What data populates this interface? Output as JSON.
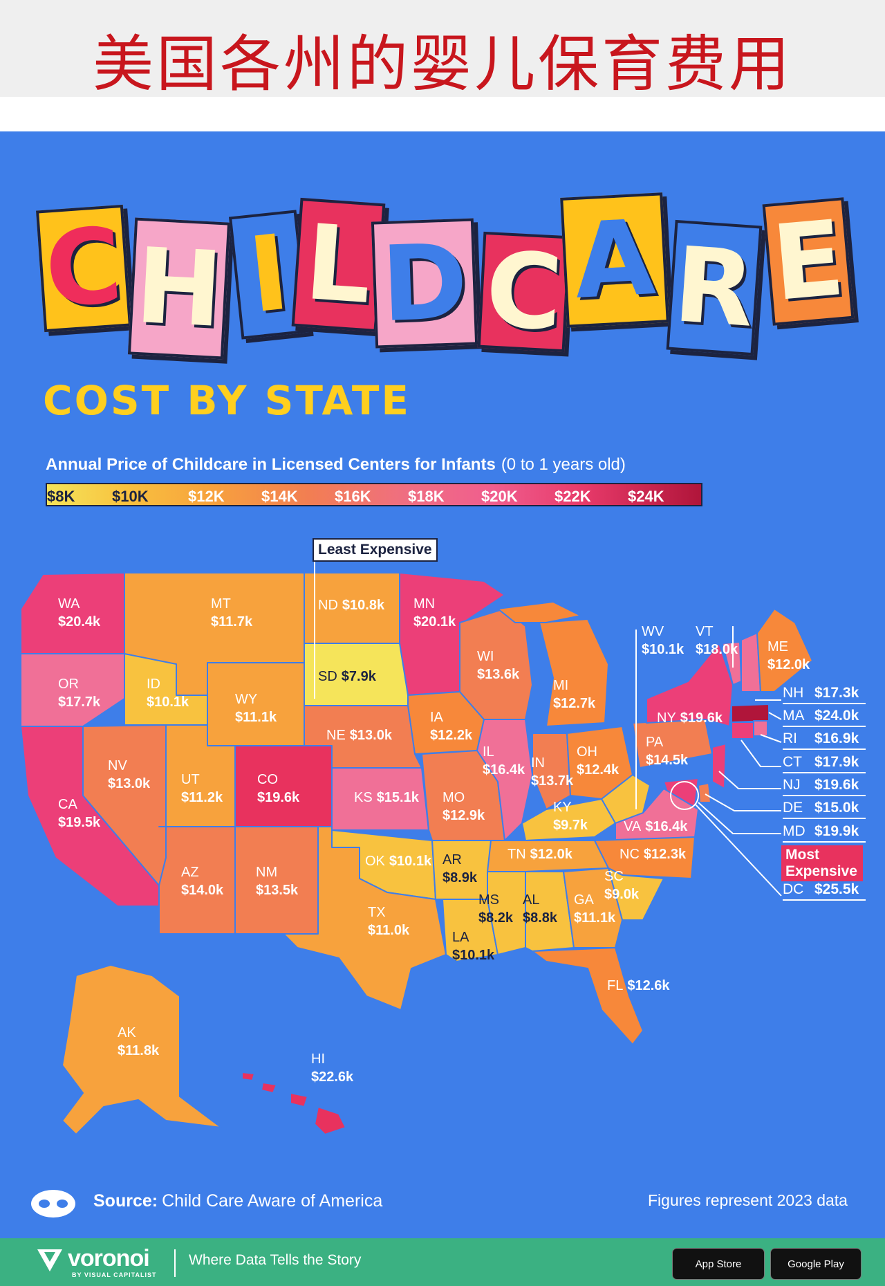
{
  "cn_title": "美国各州的婴儿保育费用",
  "headline_letters": [
    "C",
    "H",
    "I",
    "L",
    "D",
    "C",
    "A",
    "R",
    "E"
  ],
  "subtitle": "COST BY STATE",
  "legend": {
    "title": "Annual Price of Childcare in Licensed Centers for Infants",
    "title_sub": "(0 to 1 years old)",
    "ticks": [
      "$8K",
      "$10K",
      "$12K",
      "$14K",
      "$16K",
      "$18K",
      "$20K",
      "$22K",
      "$24K"
    ],
    "color_low": "#f5e45a",
    "color_high": "#b0153a"
  },
  "least_expensive_label": "Least Expensive",
  "most_expensive_label": "Most Expensive",
  "map_data": {
    "unit": "USD thousands per year",
    "states": [
      {
        "code": "WA",
        "value": "$20.4k"
      },
      {
        "code": "OR",
        "value": "$17.7k"
      },
      {
        "code": "CA",
        "value": "$19.5k"
      },
      {
        "code": "ID",
        "value": "$10.1k"
      },
      {
        "code": "NV",
        "value": "$13.0k"
      },
      {
        "code": "MT",
        "value": "$11.7k"
      },
      {
        "code": "WY",
        "value": "$11.1k"
      },
      {
        "code": "UT",
        "value": "$11.2k"
      },
      {
        "code": "AZ",
        "value": "$14.0k"
      },
      {
        "code": "CO",
        "value": "$19.6k"
      },
      {
        "code": "NM",
        "value": "$13.5k"
      },
      {
        "code": "ND",
        "value": "$10.8k"
      },
      {
        "code": "SD",
        "value": "$7.9k"
      },
      {
        "code": "NE",
        "value": "$13.0k"
      },
      {
        "code": "KS",
        "value": "$15.1k"
      },
      {
        "code": "OK",
        "value": "$10.1k"
      },
      {
        "code": "TX",
        "value": "$11.0k"
      },
      {
        "code": "MN",
        "value": "$20.1k"
      },
      {
        "code": "IA",
        "value": "$12.2k"
      },
      {
        "code": "MO",
        "value": "$12.9k"
      },
      {
        "code": "AR",
        "value": "$8.9k"
      },
      {
        "code": "LA",
        "value": "$10.1k"
      },
      {
        "code": "WI",
        "value": "$13.6k"
      },
      {
        "code": "IL",
        "value": "$16.4k"
      },
      {
        "code": "MS",
        "value": "$8.2k"
      },
      {
        "code": "MI",
        "value": "$12.7k"
      },
      {
        "code": "IN",
        "value": "$13.7k"
      },
      {
        "code": "KY",
        "value": "$9.7k"
      },
      {
        "code": "TN",
        "value": "$12.0k"
      },
      {
        "code": "AL",
        "value": "$8.8k"
      },
      {
        "code": "OH",
        "value": "$12.4k"
      },
      {
        "code": "GA",
        "value": "$11.1k"
      },
      {
        "code": "FL",
        "value": "$12.6k"
      },
      {
        "code": "SC",
        "value": "$9.0k"
      },
      {
        "code": "NC",
        "value": "$12.3k"
      },
      {
        "code": "VA",
        "value": "$16.4k"
      },
      {
        "code": "WV",
        "value": "$10.1k"
      },
      {
        "code": "PA",
        "value": "$14.5k"
      },
      {
        "code": "NY",
        "value": "$19.6k"
      },
      {
        "code": "VT",
        "value": "$18.0k"
      },
      {
        "code": "ME",
        "value": "$12.0k"
      },
      {
        "code": "NH",
        "value": "$17.3k"
      },
      {
        "code": "MA",
        "value": "$24.0k"
      },
      {
        "code": "RI",
        "value": "$16.9k"
      },
      {
        "code": "CT",
        "value": "$17.9k"
      },
      {
        "code": "NJ",
        "value": "$19.6k"
      },
      {
        "code": "DE",
        "value": "$15.0k"
      },
      {
        "code": "MD",
        "value": "$19.9k"
      },
      {
        "code": "DC",
        "value": "$25.5k"
      },
      {
        "code": "AK",
        "value": "$11.8k"
      },
      {
        "code": "HI",
        "value": "$22.6k"
      }
    ]
  },
  "source": {
    "label": "Source:",
    "text": "Child Care Aware of America"
  },
  "note": "Figures represent 2023 data",
  "footer": {
    "brand": "voronoi",
    "brand_sub": "BY VISUAL CAPITALIST",
    "tagline": "Where Data Tells the Story",
    "app_store": "App Store",
    "google_play": "Google Play"
  },
  "colors": {
    "background": "#3e7ee9",
    "footer": "#3bb182",
    "title_red": "#c8161d",
    "accent_yellow": "#ffcf1f"
  }
}
